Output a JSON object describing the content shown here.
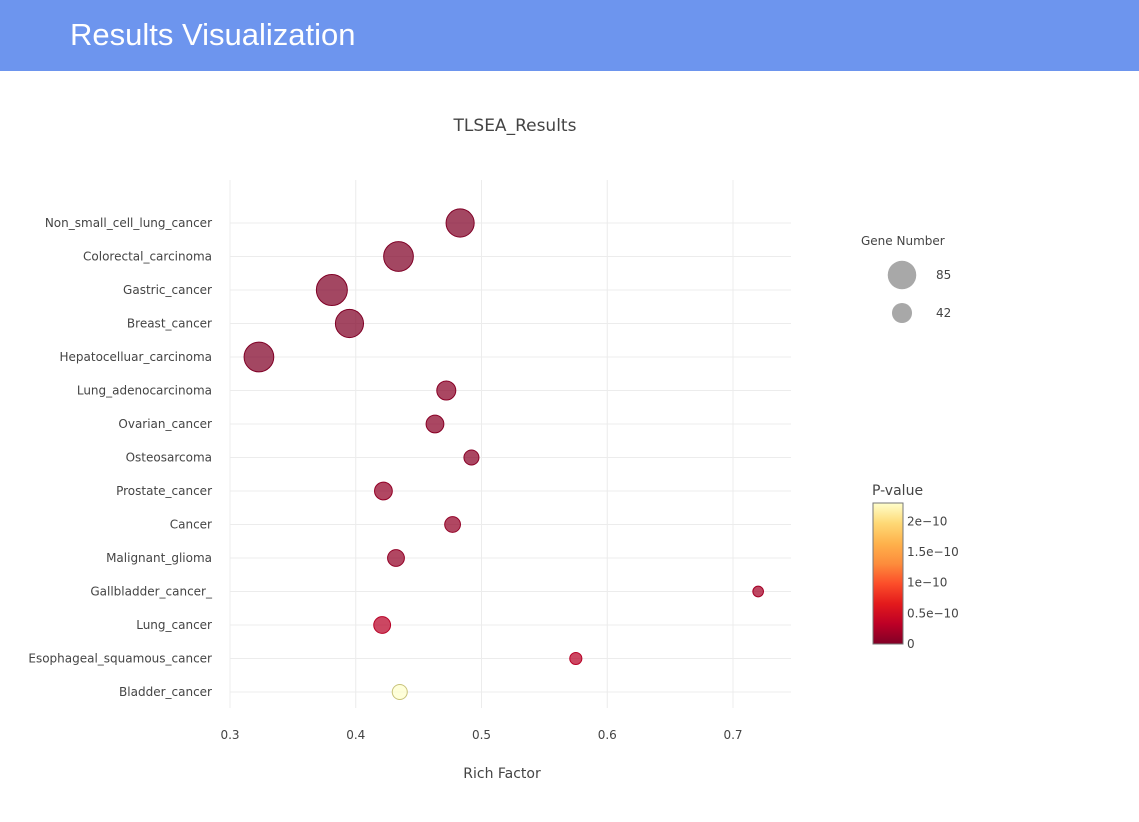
{
  "header": {
    "title": "Results Visualization"
  },
  "chart_data": {
    "type": "scatter",
    "title": "TLSEA_Results",
    "xlabel": "Rich Factor",
    "ylabel": "",
    "xlim": [
      0.3,
      0.75
    ],
    "x_ticks": [
      0.3,
      0.4,
      0.5,
      0.6,
      0.7
    ],
    "x_tick_labels": [
      "0.3",
      "0.4",
      "0.5",
      "0.6",
      "0.7"
    ],
    "grid": true,
    "categories": [
      "Non_small_cell_lung_cancer",
      "Colorectal_carcinoma",
      "Gastric_cancer",
      "Breast_cancer",
      "Hepatocelluar_carcinoma",
      "Lung_adenocarcinoma",
      "Ovarian_cancer",
      "Osteosarcoma",
      "Prostate_cancer",
      "Cancer",
      "Malignant_glioma",
      "Gallbladder_cancer_",
      "Lung_cancer",
      "Esophageal_squamous_cancer",
      "Bladder_cancer"
    ],
    "points": [
      {
        "category": "Non_small_cell_lung_cancer",
        "x": 0.483,
        "gene_number": 70,
        "p_value": 0.0
      },
      {
        "category": "Colorectal_carcinoma",
        "x": 0.434,
        "gene_number": 78,
        "p_value": 0.0
      },
      {
        "category": "Gastric_cancer",
        "x": 0.381,
        "gene_number": 85,
        "p_value": 0.0
      },
      {
        "category": "Breast_cancer",
        "x": 0.395,
        "gene_number": 70,
        "p_value": 0.0
      },
      {
        "category": "Hepatocelluar_carcinoma",
        "x": 0.323,
        "gene_number": 78,
        "p_value": 0.0
      },
      {
        "category": "Lung_adenocarcinoma",
        "x": 0.472,
        "gene_number": 32,
        "p_value": 5e-12
      },
      {
        "category": "Ovarian_cancer",
        "x": 0.463,
        "gene_number": 28,
        "p_value": 5e-12
      },
      {
        "category": "Osteosarcoma",
        "x": 0.492,
        "gene_number": 20,
        "p_value": 5e-12
      },
      {
        "category": "Prostate_cancer",
        "x": 0.422,
        "gene_number": 28,
        "p_value": 1e-11
      },
      {
        "category": "Cancer",
        "x": 0.477,
        "gene_number": 22,
        "p_value": 1e-11
      },
      {
        "category": "Malignant_glioma",
        "x": 0.432,
        "gene_number": 25,
        "p_value": 1e-11
      },
      {
        "category": "Gallbladder_cancer_",
        "x": 0.72,
        "gene_number": 10,
        "p_value": 2e-11
      },
      {
        "category": "Lung_cancer",
        "x": 0.421,
        "gene_number": 25,
        "p_value": 3e-11
      },
      {
        "category": "Esophageal_squamous_cancer",
        "x": 0.575,
        "gene_number": 13,
        "p_value": 3e-11
      },
      {
        "category": "Bladder_cancer",
        "x": 0.435,
        "gene_number": 20,
        "p_value": 2.3e-10
      }
    ],
    "size_legend": {
      "title": "Gene Number",
      "items": [
        {
          "label": "85",
          "value": 85
        },
        {
          "label": "42",
          "value": 42
        }
      ],
      "color": "#a8a8a8"
    },
    "colorbar": {
      "title": "P-value",
      "range": [
        0,
        2.3e-10
      ],
      "ticks": [
        {
          "value": 0,
          "label": "0"
        },
        {
          "value": 5e-11,
          "label": "0.5e−10"
        },
        {
          "value": 1e-10,
          "label": "1e−10"
        },
        {
          "value": 1.5e-10,
          "label": "1.5e−10"
        },
        {
          "value": 2e-10,
          "label": "2e−10"
        }
      ],
      "colorscale": [
        "#800026",
        "#bd0026",
        "#e31a1c",
        "#fc4e2a",
        "#fd8d3c",
        "#feb24c",
        "#fed976",
        "#ffffcc"
      ]
    },
    "legend_position": "right"
  }
}
